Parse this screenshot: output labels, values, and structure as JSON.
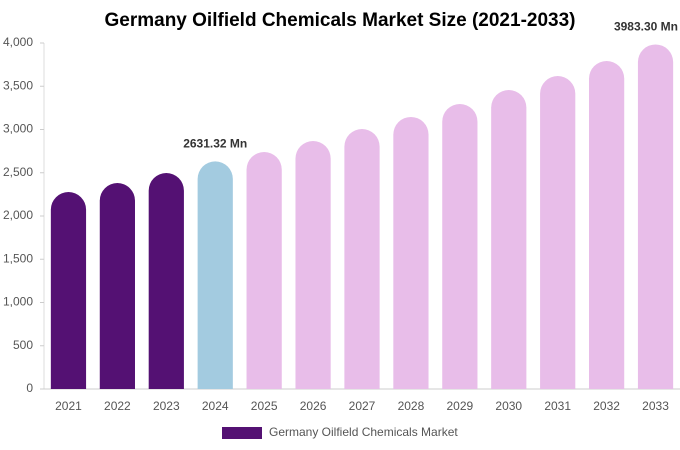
{
  "chart_data": {
    "type": "bar",
    "title": "Germany Oilfield Chemicals Market Size (2021-2033)",
    "categories": [
      "2021",
      "2022",
      "2023",
      "2024",
      "2025",
      "2026",
      "2027",
      "2028",
      "2029",
      "2030",
      "2031",
      "2032",
      "2033"
    ],
    "series": [
      {
        "name": "Germany Oilfield Chemicals Market",
        "color": "#541173",
        "colors": [
          "#541173",
          "#541173",
          "#541173",
          "#a3cbe0",
          "#e8bde9",
          "#e8bde9",
          "#e8bde9",
          "#e8bde9",
          "#e8bde9",
          "#e8bde9",
          "#e8bde9",
          "#e8bde9",
          "#e8bde9"
        ],
        "values": [
          2277,
          2381,
          2497,
          2631.32,
          2740,
          2867,
          3006,
          3145,
          3295,
          3457,
          3618,
          3792,
          3983.3
        ],
        "value_labels": [
          null,
          null,
          null,
          "2631.32 Mn",
          null,
          null,
          null,
          null,
          null,
          null,
          null,
          null,
          "3983.30 Mn"
        ]
      }
    ],
    "ylim": [
      0,
      4000
    ],
    "yticks": [
      0,
      500,
      {
        "value": 1000,
        "label": "1,000"
      },
      {
        "value": 1500,
        "label": "1,500"
      },
      {
        "value": 2000,
        "label": "2,000"
      },
      {
        "value": 2500,
        "label": "2,500"
      },
      {
        "value": 3000,
        "label": "3,000"
      },
      {
        "value": 3500,
        "label": "3,500"
      },
      {
        "value": 4000,
        "label": "4,000"
      }
    ],
    "grid": false
  }
}
